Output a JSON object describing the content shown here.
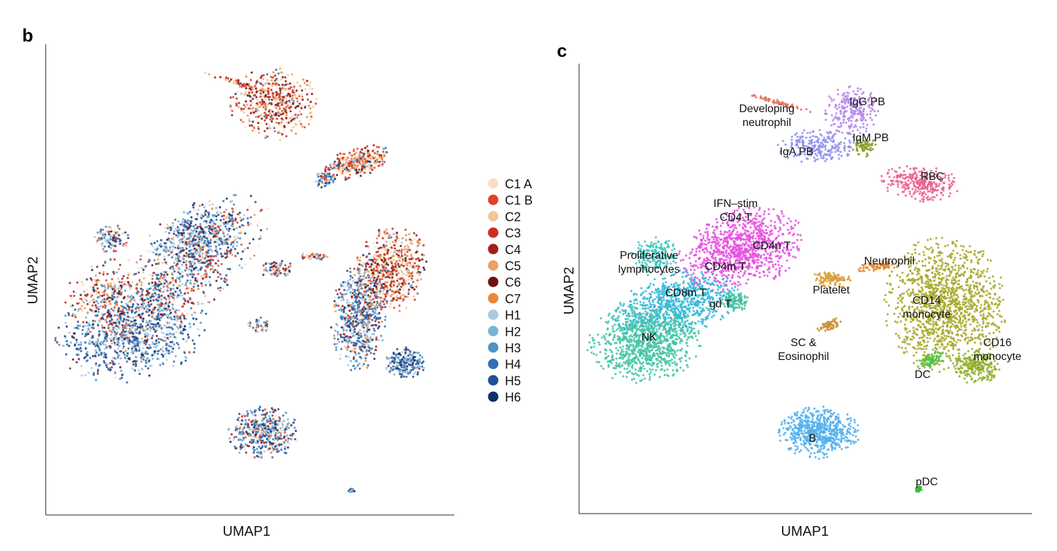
{
  "chart_data": [
    {
      "panel": "b",
      "type": "scatter",
      "title": "",
      "xlabel": "UMAP1",
      "ylabel": "UMAP2",
      "grid": false,
      "legend_position": "right",
      "legend": [
        {
          "label": "C1 A",
          "color": "#f9dfc6"
        },
        {
          "label": "C1 B",
          "color": "#e2412c"
        },
        {
          "label": "C2",
          "color": "#f5c49b"
        },
        {
          "label": "C3",
          "color": "#cc2b1f"
        },
        {
          "label": "C4",
          "color": "#a32018"
        },
        {
          "label": "C5",
          "color": "#eba064"
        },
        {
          "label": "C6",
          "color": "#6e1212"
        },
        {
          "label": "C7",
          "color": "#e8863a"
        },
        {
          "label": "H1",
          "color": "#a7cbe3"
        },
        {
          "label": "H2",
          "color": "#7ab1d8"
        },
        {
          "label": "H3",
          "color": "#4b93c9"
        },
        {
          "label": "H4",
          "color": "#3270b3"
        },
        {
          "label": "H5",
          "color": "#214f9b"
        },
        {
          "label": "H6",
          "color": "#10306c"
        }
      ]
    },
    {
      "panel": "c",
      "type": "scatter",
      "title": "",
      "xlabel": "UMAP1",
      "ylabel": "UMAP2",
      "grid": false,
      "clusters": [
        {
          "label": "Developing neutrophil",
          "lines": [
            "Developing",
            "neutrophil"
          ],
          "color": "#e8705f"
        },
        {
          "label": "IgG PB",
          "lines": [
            "IgG PB"
          ],
          "color": "#b485e8"
        },
        {
          "label": "IgM PB",
          "lines": [
            "IgM PB"
          ],
          "color": "#8a9a2a"
        },
        {
          "label": "IgA PB",
          "lines": [
            "IgA PB"
          ],
          "color": "#8e8ef0"
        },
        {
          "label": "RBC",
          "lines": [
            "RBC"
          ],
          "color": "#e8608f"
        },
        {
          "label": "IFN-stim CD4 T",
          "lines": [
            "IFN–stim",
            "CD4 T"
          ],
          "color": "#e64fe0"
        },
        {
          "label": "CD4n T",
          "lines": [
            "CD4n T"
          ],
          "color": "#e64fe0"
        },
        {
          "label": "CD4m T",
          "lines": [
            "CD4m T"
          ],
          "color": "#e64fe0"
        },
        {
          "label": "Proliferative lymphocytes",
          "lines": [
            "Proliferative",
            "lymphocytes"
          ],
          "color": "#3cc7c0"
        },
        {
          "label": "CD8m T",
          "lines": [
            "CD8m T"
          ],
          "color": "#35b8d8"
        },
        {
          "label": "gd T",
          "lines": [
            "gd T"
          ],
          "color": "#3dbfa0"
        },
        {
          "label": "NK",
          "lines": [
            "NK"
          ],
          "color": "#43c4a5"
        },
        {
          "label": "Neutrophil",
          "lines": [
            "Neutrophil"
          ],
          "color": "#e48a35"
        },
        {
          "label": "Platelet",
          "lines": [
            "Platelet"
          ],
          "color": "#d9a03a"
        },
        {
          "label": "CD14 monocyte",
          "lines": [
            "CD14",
            "monocyte"
          ],
          "color": "#a8a82a"
        },
        {
          "label": "CD16 monocyte",
          "lines": [
            "CD16",
            "monocyte"
          ],
          "color": "#8fae2a"
        },
        {
          "label": "DC",
          "lines": [
            "DC"
          ],
          "color": "#50c040"
        },
        {
          "label": "SC & Eosinophil",
          "lines": [
            "SC &",
            "Eosinophil"
          ],
          "color": "#c89030"
        },
        {
          "label": "B",
          "lines": [
            "B"
          ],
          "color": "#52b0ee"
        },
        {
          "label": "pDC",
          "lines": [
            "pDC"
          ],
          "color": "#3ab83a"
        }
      ]
    }
  ]
}
